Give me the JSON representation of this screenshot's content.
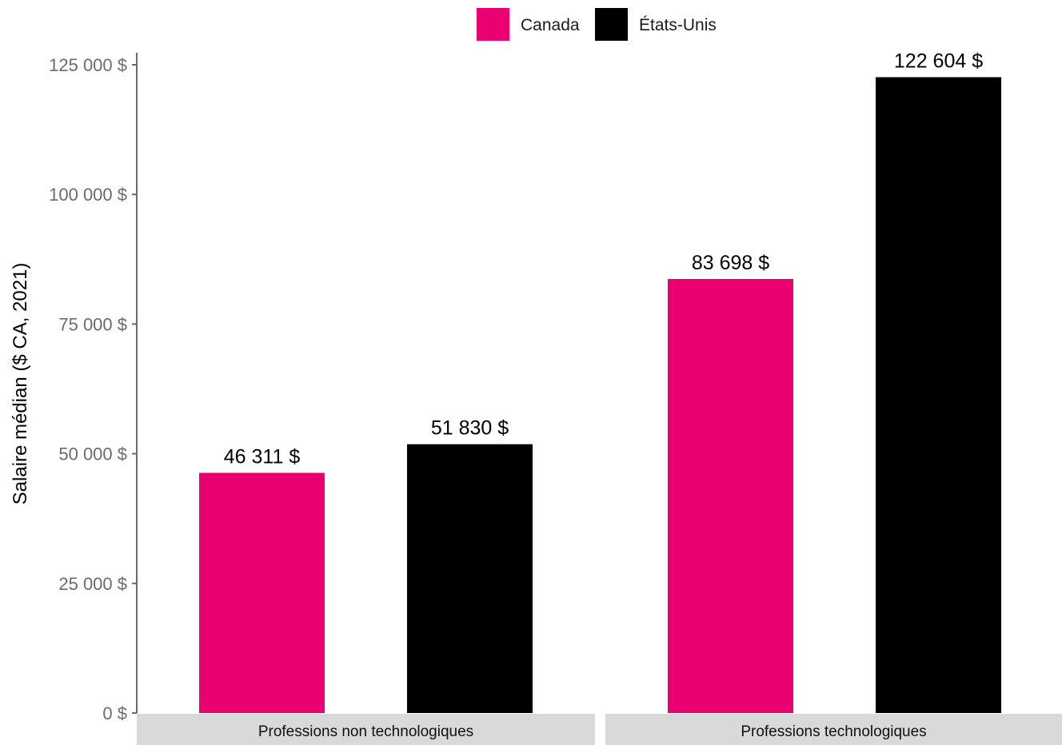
{
  "chart_data": {
    "type": "bar",
    "ylabel": "Salaire médian ($ CA, 2021)",
    "ylim": [
      0,
      125000
    ],
    "yticks": [
      {
        "value": 0,
        "label": "0 $"
      },
      {
        "value": 25000,
        "label": "25 000 $"
      },
      {
        "value": 50000,
        "label": "50 000 $"
      },
      {
        "value": 75000,
        "label": "75 000 $"
      },
      {
        "value": 100000,
        "label": "100 000 $"
      },
      {
        "value": 125000,
        "label": "125 000 $"
      }
    ],
    "legend": {
      "position": "top-center"
    },
    "series": [
      {
        "name": "Canada",
        "color": "#EA0070"
      },
      {
        "name": "États-Unis",
        "color": "#000000"
      }
    ],
    "panels": [
      {
        "title": "Professions non technologiques",
        "bars": [
          {
            "series": "Canada",
            "value": 46311,
            "label": "46 311 $"
          },
          {
            "series": "États-Unis",
            "value": 51830,
            "label": "51 830 $"
          }
        ]
      },
      {
        "title": "Professions technologiques",
        "bars": [
          {
            "series": "Canada",
            "value": 83698,
            "label": "83 698 $"
          },
          {
            "series": "États-Unis",
            "value": 122604,
            "label": "122 604 $"
          }
        ]
      }
    ],
    "grid": false,
    "facet_strip_color": "#D9D9D9"
  }
}
